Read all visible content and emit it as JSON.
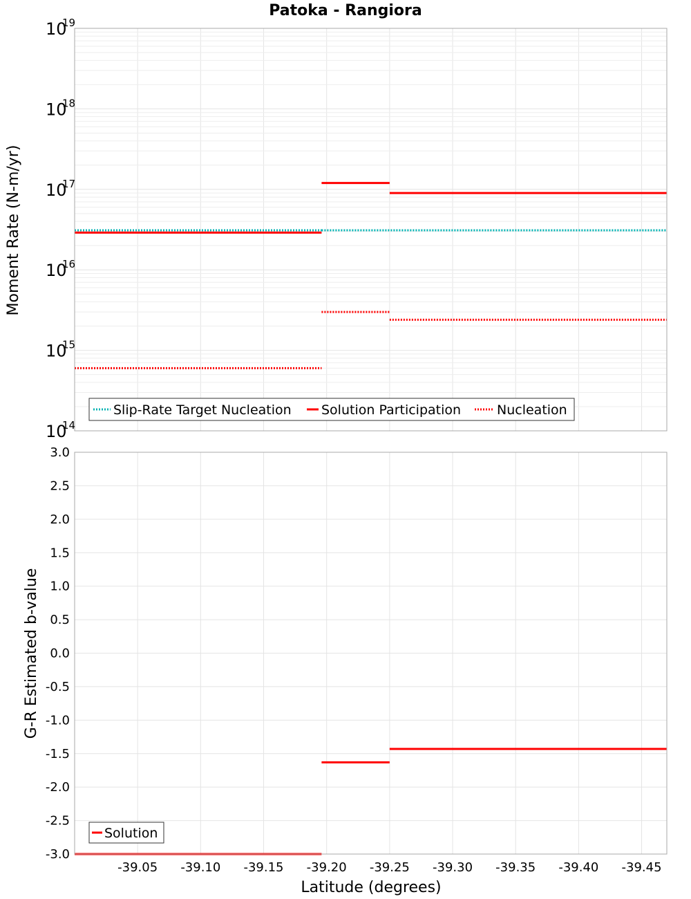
{
  "chart_data": [
    {
      "type": "line",
      "title": "Patoka - Rangiora",
      "ylabel": "Moment Rate (N-m/yr)",
      "xlabel": "",
      "yscale": "log",
      "ylim": [
        100000000000000.0,
        1e+19
      ],
      "xlim": [
        -39.0,
        -39.47
      ],
      "y_tick_labels": [
        {
          "base": "10",
          "exp": "14"
        },
        {
          "base": "10",
          "exp": "15"
        },
        {
          "base": "10",
          "exp": "16"
        },
        {
          "base": "10",
          "exp": "17"
        },
        {
          "base": "10",
          "exp": "18"
        },
        {
          "base": "10",
          "exp": "19"
        }
      ],
      "grid": true,
      "legend_position": "bottom-left",
      "series": [
        {
          "name": "Slip-Rate Target Nucleation",
          "color": "#00b3b3",
          "style": "dotted",
          "segments": [
            {
              "x": [
                -39.0,
                -39.196
              ],
              "y": 3.1e+16
            },
            {
              "x": [
                -39.196,
                -39.47
              ],
              "y": 3.1e+16
            }
          ]
        },
        {
          "name": "Solution Participation",
          "color": "#ff0000",
          "style": "solid",
          "segments": [
            {
              "x": [
                -39.0,
                -39.196
              ],
              "y": 2.9e+16
            },
            {
              "x": [
                -39.196,
                -39.25
              ],
              "y": 1.2e+17
            },
            {
              "x": [
                -39.25,
                -39.47
              ],
              "y": 9e+16
            }
          ]
        },
        {
          "name": "Nucleation",
          "color": "#ff0000",
          "style": "dotted",
          "segments": [
            {
              "x": [
                -39.0,
                -39.196
              ],
              "y": 600000000000000.0
            },
            {
              "x": [
                -39.196,
                -39.25
              ],
              "y": 3000000000000000.0
            },
            {
              "x": [
                -39.25,
                -39.47
              ],
              "y": 2400000000000000.0
            }
          ]
        }
      ]
    },
    {
      "type": "line",
      "title": "",
      "ylabel": "G-R Estimated b-value",
      "xlabel": "Latitude (degrees)",
      "ylim": [
        -3.0,
        3.0
      ],
      "xlim": [
        -39.0,
        -39.47
      ],
      "y_ticks": [
        "3.0",
        "2.5",
        "2.0",
        "1.5",
        "1.0",
        "0.5",
        "0.0",
        "-0.5",
        "-1.0",
        "-1.5",
        "-2.0",
        "-2.5",
        "-3.0"
      ],
      "x_ticks": [
        "-39.05",
        "-39.10",
        "-39.15",
        "-39.20",
        "-39.25",
        "-39.30",
        "-39.35",
        "-39.40",
        "-39.45"
      ],
      "grid": true,
      "legend_position": "bottom-left",
      "series": [
        {
          "name": "Solution",
          "color": "#ff0000",
          "style": "solid",
          "segments": [
            {
              "x": [
                -39.0,
                -39.196
              ],
              "y": -3.0
            },
            {
              "x": [
                -39.196,
                -39.25
              ],
              "y": -1.63
            },
            {
              "x": [
                -39.25,
                -39.47
              ],
              "y": -1.43
            }
          ]
        }
      ]
    }
  ]
}
